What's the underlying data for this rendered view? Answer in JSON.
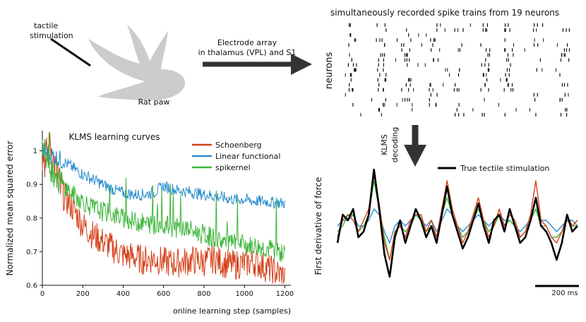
{
  "figure": {
    "paw_label": "tactile\nstimulation",
    "paw_caption": "Rat paw",
    "electrode_label": [
      "Electrode array",
      "in thalamus (VPL) and S1"
    ],
    "spike_title": "simultaneously recorded spike trains from 19 neurons",
    "neurons_label": "neurons",
    "klms_decoding_label": [
      "KLMS",
      "decoding"
    ],
    "decode_ylabel": "First derivative of force",
    "decode_legend": "True tectile stimulation",
    "scalebar_label": "200 ms"
  },
  "colors": {
    "schoenberg": "#d4401a",
    "linear": "#2a8fcf",
    "spikernel": "#3db53a",
    "true": "#000000",
    "paw": "#cccccc",
    "arrow": "#333333"
  },
  "chart_data": [
    {
      "type": "line",
      "title": "KLMS learning curves",
      "xlabel": "online learning step (samples)",
      "ylabel": "Normalized mean squared error",
      "xlim": [
        0,
        1230
      ],
      "ylim": [
        0.6,
        1.06
      ],
      "xticks": [
        0,
        200,
        400,
        600,
        800,
        1000,
        1200
      ],
      "yticks": [
        0.6,
        0.7,
        0.8,
        0.9,
        1
      ],
      "legend": "top-right",
      "series": [
        {
          "name": "Schoenberg",
          "color": "#d4401a",
          "x": [
            0,
            20,
            40,
            60,
            80,
            100,
            150,
            200,
            250,
            300,
            350,
            400,
            450,
            500,
            550,
            600,
            650,
            700,
            750,
            800,
            850,
            900,
            950,
            1000,
            1050,
            1100,
            1150,
            1200
          ],
          "y": [
            1.0,
            0.97,
            1.03,
            0.95,
            0.9,
            0.87,
            0.83,
            0.78,
            0.75,
            0.73,
            0.71,
            0.69,
            0.685,
            0.675,
            0.68,
            0.67,
            0.665,
            0.67,
            0.675,
            0.67,
            0.68,
            0.665,
            0.66,
            0.665,
            0.67,
            0.655,
            0.64,
            0.625
          ]
        },
        {
          "name": "Linear functional",
          "color": "#2a8fcf",
          "x": [
            0,
            50,
            100,
            150,
            200,
            250,
            300,
            350,
            400,
            450,
            500,
            550,
            600,
            650,
            700,
            750,
            800,
            850,
            900,
            950,
            1000,
            1050,
            1100,
            1150,
            1200
          ],
          "y": [
            1.0,
            0.985,
            0.97,
            0.95,
            0.93,
            0.915,
            0.9,
            0.885,
            0.875,
            0.87,
            0.87,
            0.875,
            0.895,
            0.885,
            0.88,
            0.875,
            0.87,
            0.865,
            0.86,
            0.855,
            0.855,
            0.85,
            0.85,
            0.845,
            0.845
          ]
        },
        {
          "name": "spikernel",
          "color": "#3db53a",
          "x": [
            0,
            20,
            50,
            100,
            150,
            200,
            250,
            300,
            350,
            400,
            450,
            500,
            550,
            600,
            650,
            700,
            750,
            800,
            850,
            900,
            950,
            1000,
            1050,
            1100,
            1150,
            1200
          ],
          "y": [
            1.0,
            0.98,
            0.94,
            0.9,
            0.87,
            0.85,
            0.83,
            0.82,
            0.81,
            0.8,
            0.79,
            0.785,
            0.78,
            0.78,
            0.77,
            0.77,
            0.76,
            0.75,
            0.74,
            0.73,
            0.725,
            0.72,
            0.715,
            0.71,
            0.705,
            0.69
          ]
        }
      ]
    },
    {
      "type": "line",
      "ylabel": "First derivative of force",
      "legend": "top-right",
      "series": [
        {
          "name": "True tectile stimulation",
          "color": "#000000",
          "y": [
            -0.3,
            0.2,
            0.1,
            0.3,
            -0.2,
            -0.1,
            0.2,
            1.0,
            0.3,
            -0.5,
            -0.9,
            -0.2,
            0.1,
            -0.3,
            0.0,
            0.3,
            0.1,
            -0.2,
            0.0,
            -0.3,
            0.2,
            0.7,
            0.2,
            -0.1,
            -0.4,
            -0.2,
            0.1,
            0.4,
            0.0,
            -0.3,
            0.1,
            0.2,
            -0.1,
            0.3,
            0.0,
            -0.3,
            -0.2,
            0.1,
            0.5,
            0.0,
            -0.1,
            -0.3,
            -0.6,
            -0.3,
            0.2,
            -0.1,
            0.0
          ]
        },
        {
          "name": "",
          "color": "#d4401a",
          "y": [
            -0.2,
            0.1,
            0.2,
            0.1,
            -0.1,
            0.1,
            0.3,
            0.9,
            0.4,
            -0.3,
            -0.6,
            -0.1,
            0.0,
            -0.2,
            0.1,
            0.2,
            0.2,
            -0.1,
            0.1,
            -0.2,
            0.3,
            0.8,
            0.3,
            0.0,
            -0.3,
            -0.1,
            0.2,
            0.5,
            0.1,
            -0.2,
            0.0,
            0.3,
            0.0,
            0.2,
            0.1,
            -0.2,
            -0.1,
            0.2,
            0.8,
            0.1,
            0.0,
            -0.2,
            -0.3,
            -0.1,
            0.2,
            0.0,
            0.1
          ]
        },
        {
          "name": "",
          "color": "#2a8fcf",
          "y": [
            0.0,
            0.1,
            0.1,
            0.2,
            0.0,
            0.0,
            0.1,
            0.3,
            0.2,
            -0.1,
            -0.3,
            0.0,
            0.1,
            0.0,
            0.1,
            0.2,
            0.1,
            0.0,
            0.1,
            -0.1,
            0.1,
            0.3,
            0.2,
            0.0,
            -0.1,
            0.0,
            0.1,
            0.2,
            0.1,
            0.0,
            0.1,
            0.2,
            0.1,
            0.1,
            0.0,
            -0.1,
            0.0,
            0.1,
            0.3,
            0.1,
            0.1,
            0.0,
            -0.1,
            0.0,
            0.1,
            0.1,
            0.0
          ]
        },
        {
          "name": "",
          "color": "#3db53a",
          "y": [
            -0.1,
            0.0,
            0.2,
            0.2,
            -0.1,
            0.0,
            0.2,
            0.8,
            0.3,
            -0.2,
            -0.6,
            -0.1,
            0.0,
            -0.1,
            0.0,
            0.2,
            0.1,
            -0.1,
            0.0,
            -0.2,
            0.2,
            0.5,
            0.2,
            0.0,
            -0.2,
            -0.1,
            0.1,
            0.3,
            0.1,
            -0.1,
            0.0,
            0.2,
            0.0,
            0.1,
            0.0,
            -0.2,
            -0.1,
            0.1,
            0.3,
            0.0,
            0.0,
            -0.2,
            -0.2,
            -0.1,
            0.1,
            0.0,
            0.0
          ]
        }
      ]
    }
  ]
}
